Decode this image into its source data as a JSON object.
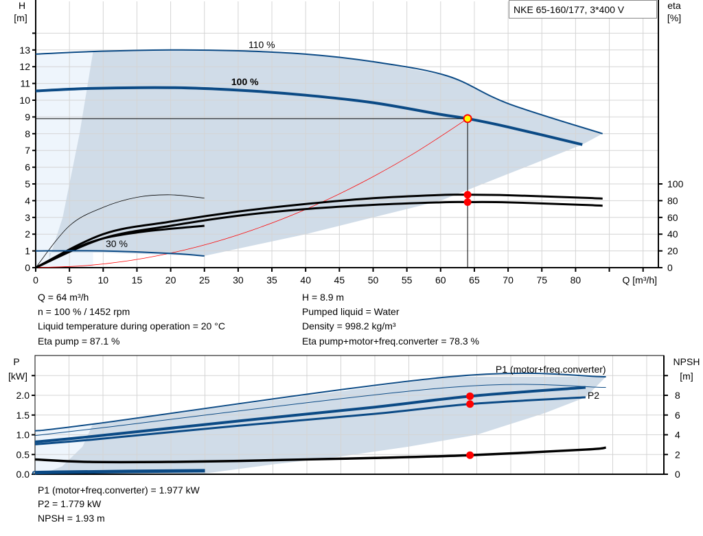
{
  "title": "NKE 65-160/177, 3*400 V",
  "colors": {
    "curve": "#0b4a85",
    "region": "#d0dce8",
    "region_light": "#eef5fc",
    "grid": "#d4d4d4",
    "marker": "#ff0000",
    "op_point": "#ffff00",
    "system": "#ff0000"
  },
  "chart_data": [
    {
      "type": "line",
      "name": "head-efficiency",
      "xlabel": "Q [m³/h]",
      "ylabel_left": "H\n[m]",
      "ylabel_left_lines": [
        "H",
        "[m]"
      ],
      "ylabel_right_lines": [
        "eta",
        "[%]"
      ],
      "xlim": [
        0,
        92.5
      ],
      "ylim_left": [
        0,
        14
      ],
      "ylim_right": [
        0,
        280
      ],
      "xticks": [
        0,
        5,
        10,
        15,
        20,
        25,
        30,
        35,
        40,
        45,
        50,
        55,
        60,
        65,
        70,
        75,
        80
      ],
      "yticks_left": [
        0,
        1,
        2,
        3,
        4,
        5,
        6,
        7,
        8,
        9,
        10,
        11,
        12,
        13
      ],
      "yticks_right": [
        0,
        20,
        40,
        60,
        80,
        100
      ],
      "grid": true,
      "annotations": [
        "110 %",
        "100 %",
        "30 %"
      ],
      "head_series": [
        {
          "name": "110 %",
          "x": [
            0,
            8,
            20,
            30,
            40,
            50,
            61,
            70,
            84
          ],
          "y": [
            12.75,
            12.9,
            13.0,
            12.95,
            12.75,
            12.3,
            11.45,
            9.8,
            8.0
          ]
        },
        {
          "name": "100 %",
          "x": [
            0,
            8,
            20,
            30,
            40,
            50,
            60,
            64,
            70,
            81
          ],
          "y": [
            10.55,
            10.7,
            10.75,
            10.6,
            10.3,
            9.85,
            9.15,
            8.9,
            8.4,
            7.35
          ]
        },
        {
          "name": "30 %",
          "x": [
            0,
            10,
            20,
            25
          ],
          "y": [
            1.0,
            1.0,
            0.85,
            0.7
          ]
        }
      ],
      "system_curve": {
        "x": [
          0,
          8,
          16,
          24,
          32,
          40,
          48,
          56,
          64
        ],
        "y": [
          0,
          0.14,
          0.56,
          1.25,
          2.23,
          3.48,
          5.01,
          6.81,
          8.9
        ]
      },
      "eta_series": [
        {
          "x": [
            0,
            5,
            10,
            15,
            20,
            25
          ],
          "y": [
            0,
            50,
            72,
            84,
            87,
            83
          ]
        },
        {
          "x": [
            0,
            10,
            20,
            30,
            40,
            50,
            60,
            64,
            70,
            81,
            84
          ],
          "y": [
            0,
            40,
            55,
            67,
            76,
            83,
            86.8,
            87.1,
            86.5,
            83.5,
            82.5
          ]
        },
        {
          "x": [
            0,
            10,
            20,
            30,
            40,
            50,
            60,
            64,
            70,
            81,
            84
          ],
          "y": [
            0,
            35,
            50,
            62,
            70,
            75,
            78,
            78.3,
            78,
            75,
            74
          ]
        },
        {
          "x": [
            0,
            8,
            15,
            25
          ],
          "y": [
            0,
            30,
            42,
            50
          ]
        }
      ],
      "operating_point": {
        "Q": 64,
        "H": 8.9,
        "eta_pump": 87.1,
        "eta_total": 78.3
      }
    },
    {
      "type": "line",
      "name": "power-npsh",
      "ylabel_left_lines": [
        "P",
        "[kW]"
      ],
      "ylabel_right_lines": [
        "NPSH",
        "[m]"
      ],
      "xlim": [
        0,
        92.5
      ],
      "ylim_left": [
        0,
        3.0
      ],
      "ylim_right": [
        0,
        12
      ],
      "yticks_left": [
        "0.0",
        "0.5",
        "1.0",
        "1.5",
        "2.0"
      ],
      "yticks_right": [
        0,
        2,
        4,
        6,
        8
      ],
      "grid": true,
      "annotations": [
        "P1 (motor+freq.converter)",
        "P2"
      ],
      "power_series": [
        {
          "name": "P1 max",
          "x": [
            0,
            8.5,
            61,
            84
          ],
          "y": [
            1.1,
            1.27,
            2.47,
            2.47
          ]
        },
        {
          "name": "P2 max",
          "x": [
            0,
            8.5,
            61,
            84
          ],
          "y": [
            0.98,
            1.15,
            2.2,
            2.2
          ]
        },
        {
          "name": "P1 (motor+freq.converter)",
          "x": [
            0,
            8,
            30,
            50,
            64,
            81
          ],
          "y": [
            0.82,
            0.95,
            1.35,
            1.7,
            1.977,
            2.2
          ]
        },
        {
          "name": "P2",
          "x": [
            0,
            8,
            30,
            50,
            64,
            81
          ],
          "y": [
            0.76,
            0.87,
            1.23,
            1.53,
            1.779,
            1.95
          ]
        },
        {
          "name": "P low",
          "x": [
            0,
            2.5,
            25
          ],
          "y": [
            0.03,
            0.05,
            0.09
          ]
        }
      ],
      "npsh_series": {
        "x": [
          0,
          8,
          20,
          30,
          40,
          50,
          64,
          81,
          84
        ],
        "y": [
          1.5,
          1.25,
          1.25,
          1.35,
          1.5,
          1.65,
          1.93,
          2.5,
          2.7
        ]
      },
      "operating_point": {
        "Q": 64,
        "P1": 1.977,
        "P2": 1.779,
        "NPSH": 1.93
      }
    }
  ],
  "readout": {
    "col1": [
      "Q = 64 m³/h",
      "n = 100 % / 1452 rpm",
      "Liquid temperature during operation = 20 °C",
      "Eta pump = 87.1 %"
    ],
    "col2": [
      "H = 8.9 m",
      "Pumped liquid = Water",
      "Density = 998.2 kg/m³",
      "Eta pump+motor+freq.converter = 78.3 %"
    ],
    "bottom": [
      "P1 (motor+freq.converter) = 1.977 kW",
      "P2 = 1.779 kW",
      "NPSH = 1.93 m"
    ]
  }
}
